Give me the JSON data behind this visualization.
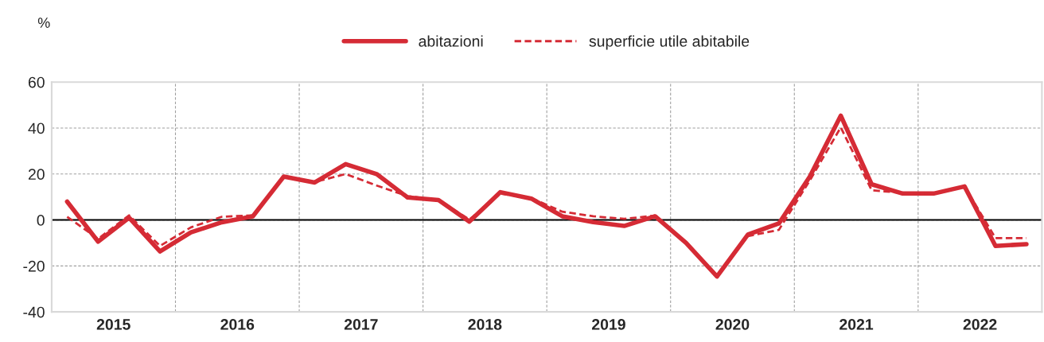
{
  "chart_data": {
    "type": "line",
    "ylabel": "%",
    "x": [
      2015.125,
      2015.375,
      2015.625,
      2015.875,
      2016.125,
      2016.375,
      2016.625,
      2016.875,
      2017.125,
      2017.375,
      2017.625,
      2017.875,
      2018.125,
      2018.375,
      2018.625,
      2018.875,
      2019.125,
      2019.375,
      2019.625,
      2019.875,
      2020.125,
      2020.375,
      2020.625,
      2020.875,
      2021.125,
      2021.375,
      2021.625,
      2021.875,
      2022.125,
      2022.375,
      2022.625,
      2022.875
    ],
    "series": [
      {
        "name": "abitazioni",
        "color": "#d52b35",
        "line_style": "solid",
        "values": [
          8,
          -9.4,
          1,
          -13.7,
          -5.4,
          -1,
          1.6,
          18.9,
          16.3,
          24.3,
          20,
          9.8,
          8.7,
          -0.7,
          12.1,
          9.3,
          1.6,
          -0.9,
          -2.6,
          1.6,
          -10,
          -24.6,
          -6.3,
          -1.5,
          18.9,
          45.4,
          15.5,
          11.5,
          11.5,
          14.6,
          -11.3,
          -10.5
        ]
      },
      {
        "name": "superficie utile abitabile",
        "color": "#d52b35",
        "line_style": "dashed",
        "values": [
          1.4,
          -8.2,
          2,
          -11.3,
          -3.2,
          1.4,
          2,
          19,
          16.5,
          20,
          15,
          10.4,
          8.7,
          0.2,
          11.5,
          9.5,
          3.6,
          1.6,
          0.5,
          1.9,
          -10,
          -24.6,
          -7,
          -4.3,
          17.2,
          40.3,
          12.9,
          11.8,
          11.5,
          14.6,
          -7.9,
          -7.9
        ]
      }
    ],
    "xlim": [
      2015,
      2023
    ],
    "xticks": [
      {
        "value": 2015.5,
        "label": "2015"
      },
      {
        "value": 2016,
        "label": null
      },
      {
        "value": 2016.5,
        "label": "2016"
      },
      {
        "value": 2017,
        "label": null
      },
      {
        "value": 2017.5,
        "label": "2017"
      },
      {
        "value": 2018,
        "label": null
      },
      {
        "value": 2018.5,
        "label": "2018"
      },
      {
        "value": 2019,
        "label": null
      },
      {
        "value": 2019.5,
        "label": "2019"
      },
      {
        "value": 2020,
        "label": null
      },
      {
        "value": 2020.5,
        "label": "2020"
      },
      {
        "value": 2021,
        "label": null
      },
      {
        "value": 2021.5,
        "label": "2021"
      },
      {
        "value": 2022,
        "label": null
      },
      {
        "value": 2022.5,
        "label": "2022"
      }
    ],
    "ylim": [
      -40,
      60
    ],
    "yticks": [
      -40,
      -20,
      0,
      20,
      40,
      60
    ],
    "grid": true,
    "legend": "top",
    "marker": "none",
    "ref_lines": [
      {
        "axis": "y",
        "value": 0,
        "color": "#000000",
        "line_style": "solid"
      }
    ]
  }
}
